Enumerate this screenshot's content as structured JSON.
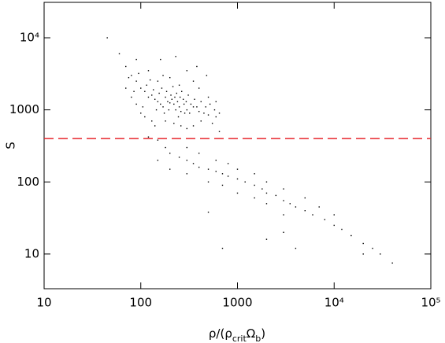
{
  "chart_data": {
    "type": "scatter",
    "ylabel": "S",
    "xlabel_parts": [
      "ρ/(ρ",
      "crit",
      "Ω",
      "b",
      ")"
    ],
    "xlog": true,
    "ylog": true,
    "xlim": [
      10,
      100000
    ],
    "ylim": [
      3.3,
      31000
    ],
    "xticks": [
      10,
      100,
      1000,
      {
        "value": 10000,
        "label": "10⁴"
      },
      {
        "value": 100000,
        "label": "10⁵"
      }
    ],
    "yticks": [
      10,
      100,
      1000,
      {
        "value": 10000,
        "label": "10⁴"
      }
    ],
    "hline": {
      "value": 400,
      "color": "#e8262c"
    },
    "series": [
      {
        "color": "#000000",
        "x": [
          45,
          60,
          70,
          80,
          90,
          100,
          110,
          120,
          130,
          140,
          150,
          160,
          170,
          180,
          190,
          200,
          210,
          220,
          230,
          240,
          250,
          260,
          280,
          300,
          320,
          350,
          400,
          450,
          500,
          600,
          70,
          80,
          90,
          100,
          110,
          130,
          150,
          170,
          200,
          250,
          300,
          350,
          400,
          500,
          600,
          120,
          90,
          140,
          180,
          220,
          260,
          300,
          350,
          420,
          550,
          650,
          75,
          85,
          95,
          105,
          115,
          125,
          135,
          145,
          155,
          165,
          175,
          185,
          195,
          205,
          215,
          225,
          235,
          245,
          255,
          265,
          275,
          285,
          295,
          310,
          330,
          360,
          380,
          420,
          470,
          520,
          580,
          650,
          160,
          230,
          380,
          480,
          120,
          150,
          180,
          200,
          250,
          300,
          350,
          400,
          500,
          600,
          700,
          800,
          1000,
          1200,
          1500,
          1800,
          2000,
          2500,
          3000,
          3500,
          4000,
          5000,
          6000,
          8000,
          10000,
          12000,
          15000,
          20000,
          25000,
          30000,
          40000,
          300,
          400,
          600,
          800,
          1000,
          1500,
          2000,
          3000,
          5000,
          7000,
          10000,
          200,
          300,
          500,
          700,
          1000,
          1500,
          2000,
          3000,
          4000,
          2000,
          3000,
          20000,
          700,
          500,
          150
        ],
        "values": [
          10000,
          6000,
          4000,
          3000,
          2500,
          2000,
          1800,
          1500,
          1600,
          1400,
          1300,
          1200,
          1100,
          1500,
          1300,
          1250,
          1400,
          1200,
          1000,
          1300,
          1100,
          950,
          1200,
          1000,
          900,
          1100,
          950,
          900,
          850,
          800,
          2000,
          1500,
          1200,
          900,
          800,
          700,
          2500,
          3000,
          2800,
          2200,
          3500,
          2500,
          2000,
          1500,
          1300,
          3500,
          5000,
          600,
          700,
          650,
          600,
          550,
          600,
          700,
          650,
          500,
          2800,
          1800,
          3200,
          1100,
          2200,
          2600,
          1900,
          1000,
          1700,
          2000,
          900,
          1800,
          1000,
          1600,
          2100,
          1500,
          1700,
          800,
          1500,
          1800,
          1400,
          900,
          1300,
          1600,
          1200,
          1400,
          1100,
          1300,
          1100,
          1200,
          1000,
          900,
          5000,
          5500,
          4000,
          3000,
          420,
          380,
          300,
          250,
          220,
          200,
          180,
          160,
          150,
          140,
          130,
          120,
          110,
          100,
          90,
          80,
          70,
          65,
          55,
          50,
          45,
          40,
          35,
          30,
          25,
          22,
          18,
          14,
          12,
          10,
          7.5,
          300,
          250,
          200,
          180,
          150,
          130,
          100,
          80,
          60,
          45,
          35,
          150,
          130,
          100,
          90,
          70,
          60,
          50,
          35,
          12,
          16,
          20,
          10,
          12,
          38,
          200
        ]
      }
    ]
  }
}
